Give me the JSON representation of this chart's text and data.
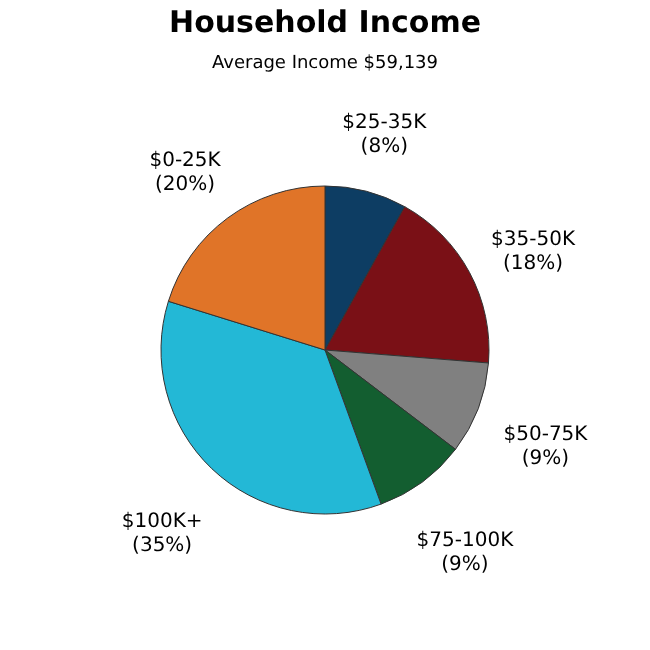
{
  "chart_data": {
    "type": "pie",
    "title": "Household Income",
    "subtitle": "Average Income  $59,139",
    "categories": [
      "$25-35K",
      "$35-50K",
      "$50-75K",
      "$75-100K",
      "$100K+",
      "$0-25K"
    ],
    "values": [
      8,
      18,
      9,
      9,
      35,
      20
    ],
    "value_labels": [
      "(8%)",
      "(18%)",
      "(9%)",
      "(9%)",
      "(35%)",
      "(20%)"
    ],
    "colors": [
      "#0d3d63",
      "#7a1016",
      "#808080",
      "#135e30",
      "#23b8d6",
      "#e07428"
    ],
    "legend": false
  }
}
